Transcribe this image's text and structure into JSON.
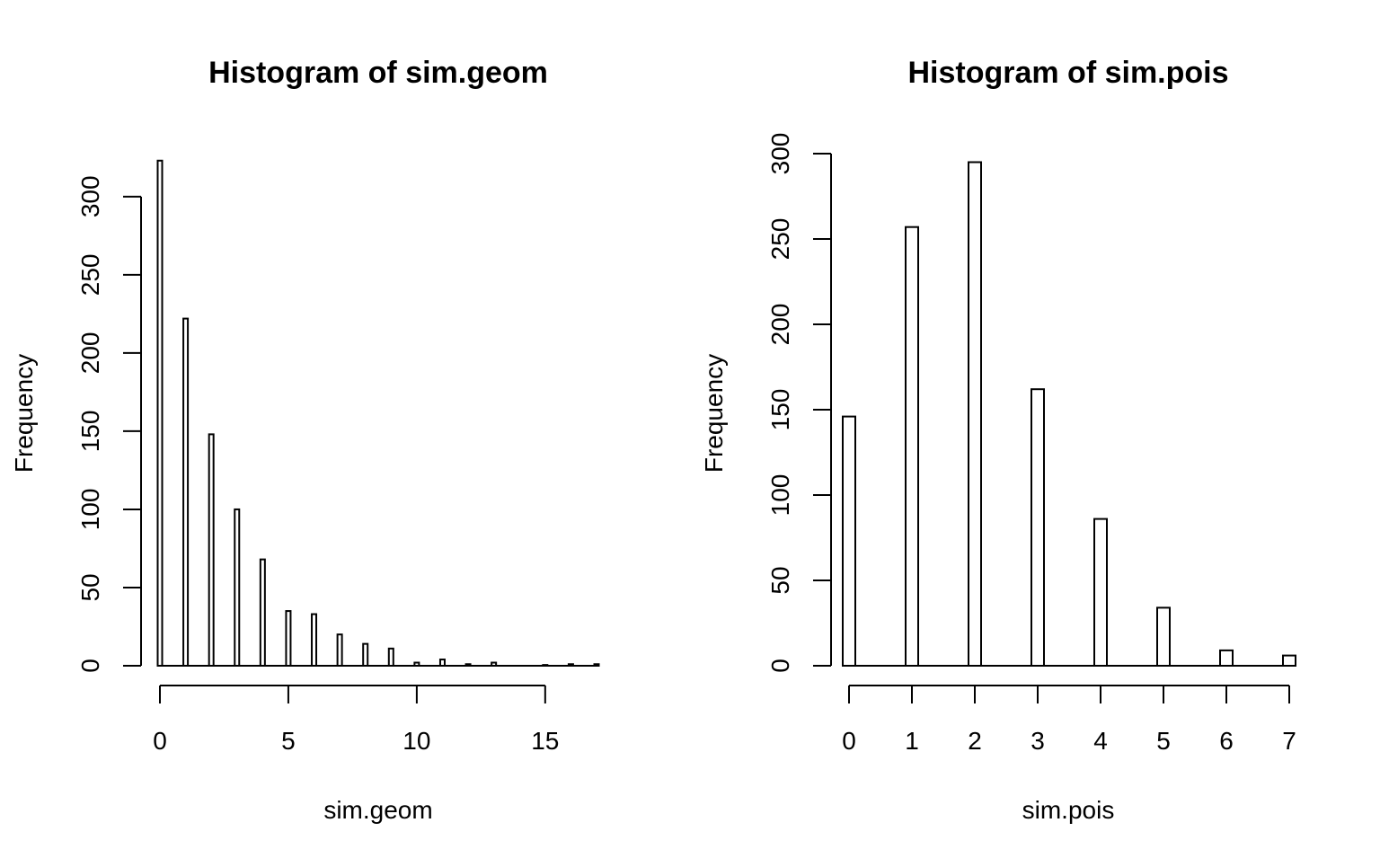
{
  "chart_data": [
    {
      "type": "bar",
      "title": "Histogram of sim.geom",
      "xlabel": "sim.geom",
      "ylabel": "Frequency",
      "x": [
        0,
        1,
        2,
        3,
        4,
        5,
        6,
        7,
        8,
        9,
        10,
        11,
        12,
        13,
        15,
        16,
        17
      ],
      "values": [
        323,
        222,
        148,
        100,
        68,
        35,
        33,
        20,
        14,
        11,
        2,
        4,
        1,
        2,
        0.5,
        1,
        1
      ],
      "xlim": [
        0,
        17
      ],
      "ylim": [
        0,
        323
      ],
      "xticks": [
        0,
        5,
        10,
        15
      ],
      "xtick_labels": [
        "0",
        "5",
        "10",
        "15"
      ],
      "yticks": [
        0,
        50,
        100,
        150,
        200,
        250,
        300
      ],
      "ytick_labels": [
        "0",
        "50",
        "100",
        "150",
        "200",
        "250",
        "300"
      ],
      "grid": false,
      "legend": "none",
      "bar_fill": "#ffffff",
      "bar_stroke": "#000000"
    },
    {
      "type": "bar",
      "title": "Histogram of sim.pois",
      "xlabel": "sim.pois",
      "ylabel": "Frequency",
      "x": [
        0,
        1,
        2,
        3,
        4,
        5,
        6,
        7
      ],
      "values": [
        146,
        257,
        295,
        162,
        86,
        34,
        9,
        6
      ],
      "xlim": [
        0,
        7
      ],
      "ylim": [
        0,
        300
      ],
      "xticks": [
        0,
        1,
        2,
        3,
        4,
        5,
        6,
        7
      ],
      "xtick_labels": [
        "0",
        "1",
        "2",
        "3",
        "4",
        "5",
        "6",
        "7"
      ],
      "yticks": [
        0,
        50,
        100,
        150,
        200,
        250,
        300
      ],
      "ytick_labels": [
        "0",
        "50",
        "100",
        "150",
        "200",
        "250",
        "300"
      ],
      "grid": false,
      "legend": "none",
      "bar_fill": "#ffffff",
      "bar_stroke": "#000000"
    }
  ]
}
